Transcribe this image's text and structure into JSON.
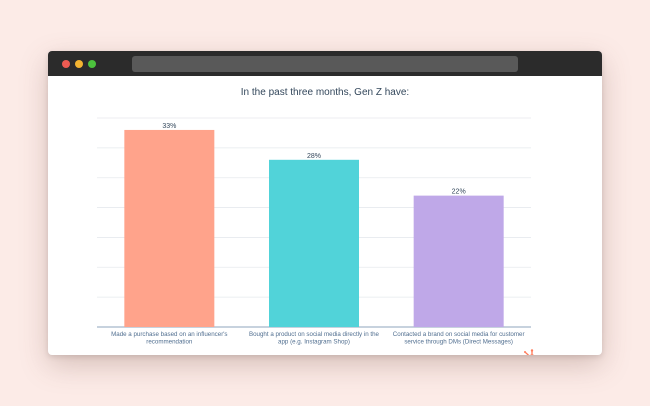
{
  "colors": {
    "page_background": "#fcebe7",
    "titlebar": "#2b2b2b",
    "gridline": "#e6e9ee",
    "axis": "#8fa6bd",
    "text": "#33475b",
    "logo": "#ff7a59"
  },
  "brand": {
    "logo_icon": "hubspot-sprocket-icon"
  },
  "chart_data": {
    "type": "bar",
    "title": "In the past three months, Gen Z have:",
    "xlabel": "",
    "ylabel": "",
    "ylim": [
      0,
      35
    ],
    "grid": true,
    "legend": "none",
    "categories": [
      [
        "Made a purchase based on an influencer's",
        "recommendation"
      ],
      [
        "Bought a product on social media directly in the",
        "app (e.g. Instagram Shop)"
      ],
      [
        "Contacted a brand on social media for customer",
        "service through DMs (Direct Messages)"
      ]
    ],
    "values": [
      33,
      28,
      22
    ],
    "value_labels": [
      "33%",
      "28%",
      "22%"
    ],
    "bar_colors": [
      "#ffa38b",
      "#51d3d9",
      "#bfa8e8"
    ]
  }
}
